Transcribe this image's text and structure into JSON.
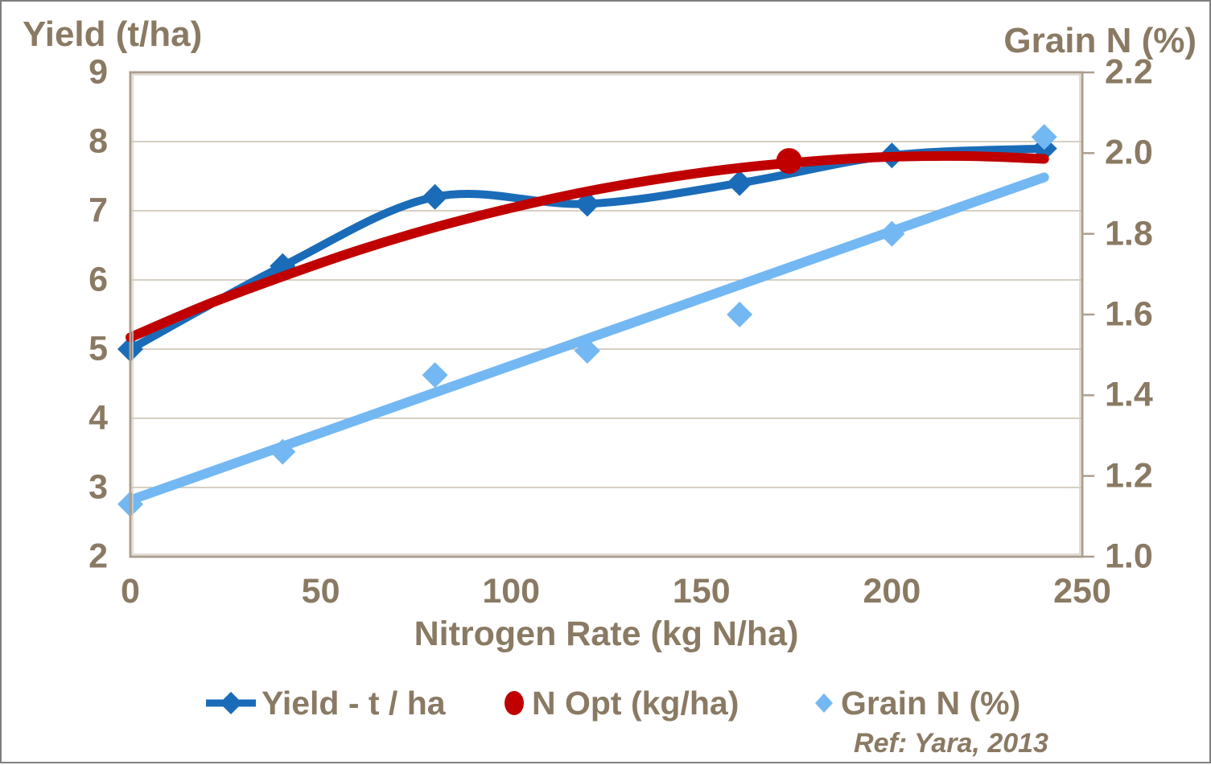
{
  "figure": {
    "left_axis_title": "Yield (t/ha)",
    "right_axis_title": "Grain N (%)",
    "x_axis_title": "Nitrogen Rate (kg N/ha)",
    "ref_note": "Ref: Yara, 2013"
  },
  "legend": {
    "items": [
      {
        "label": "Yield - t / ha",
        "marker": "line-diamond",
        "color": "#1b6cb8"
      },
      {
        "label": "N Opt (kg/ha)",
        "marker": "circle",
        "color": "#c00000"
      },
      {
        "label": "Grain N (%)",
        "marker": "diamond",
        "color": "#73b8f2"
      }
    ]
  },
  "colors": {
    "text": "#8a7a63",
    "grid": "#c8bfaf",
    "plot_border": "#ab9e8e",
    "plot_border_inner": "#d8d1c5",
    "figure_border": "#7f7f7f",
    "background": "#ffffff"
  },
  "chart_data": {
    "type": "line",
    "title": "",
    "xlabel": "Nitrogen Rate (kg N/ha)",
    "ylabel_left": "Yield (t/ha)",
    "ylabel_right": "Grain N (%)",
    "xlim": [
      0,
      250
    ],
    "ylim_left": [
      2,
      9
    ],
    "ylim_right": [
      1.0,
      2.2
    ],
    "x_ticks": [
      0,
      50,
      100,
      150,
      200,
      250
    ],
    "y_ticks_left": [
      9,
      8,
      7,
      6,
      5,
      4,
      3,
      2
    ],
    "y_ticks_right": [
      2.2,
      2.0,
      1.8,
      1.6,
      1.4,
      1.2,
      1.0
    ],
    "grid": "horizontal",
    "legend_position": "bottom",
    "series": [
      {
        "name": "Yield - t / ha",
        "type": "smooth_line",
        "axis": "left",
        "color": "#1b6cb8",
        "marker": "diamond",
        "line_width": 10,
        "marker_size": 16,
        "x": [
          0,
          40,
          80,
          120,
          160,
          200,
          240
        ],
        "y": [
          5.0,
          6.2,
          7.2,
          7.1,
          7.4,
          7.8,
          7.9
        ]
      },
      {
        "name": "N Opt (kg/ha)",
        "type": "smooth_line",
        "axis": "left",
        "color": "#c00000",
        "marker": "none",
        "line_width": 12,
        "x": [
          0,
          20,
          40,
          60,
          80,
          100,
          120,
          140,
          160,
          180,
          200,
          220,
          240
        ],
        "y": [
          5.17,
          5.64,
          6.05,
          6.43,
          6.76,
          7.04,
          7.28,
          7.47,
          7.62,
          7.72,
          7.78,
          7.79,
          7.75
        ],
        "highlight_point": {
          "x": 173,
          "y": 7.72,
          "radius": 16,
          "label": "N Opt"
        }
      },
      {
        "name": "Grain N (%)",
        "type": "scatter",
        "axis": "right",
        "color": "#73b8f2",
        "marker": "diamond",
        "marker_size": 16,
        "x": [
          0,
          40,
          80,
          120,
          160,
          200,
          240
        ],
        "y": [
          1.13,
          1.26,
          1.45,
          1.51,
          1.6,
          1.8,
          2.04
        ],
        "trendline": {
          "x": [
            0,
            240
          ],
          "y": [
            1.14,
            1.94
          ],
          "line_width": 12
        }
      }
    ]
  }
}
